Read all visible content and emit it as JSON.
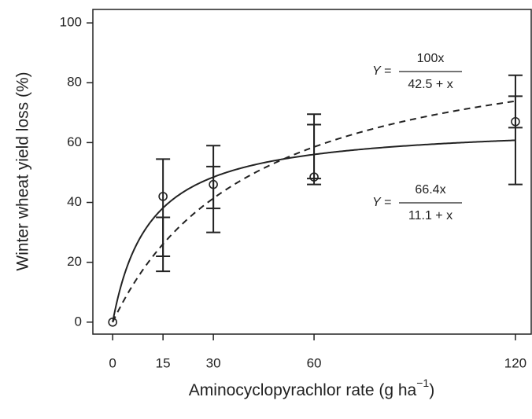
{
  "chart_data": {
    "type": "scatter",
    "x": [
      0,
      15,
      30,
      60,
      120
    ],
    "values": [
      0,
      42,
      46,
      48.5,
      67
    ],
    "error_bars": [
      {
        "low": [
          0,
          22,
          38,
          48,
          65
        ],
        "high": [
          0,
          54.5,
          59,
          69.5,
          82.5
        ]
      },
      {
        "low": [
          0,
          17,
          30,
          46,
          46
        ],
        "high": [
          0,
          35,
          52,
          66,
          75.5
        ]
      }
    ],
    "fits": [
      {
        "style": "solid",
        "a": 66.4,
        "b": 11.1,
        "lhs": "Y =",
        "numerator": "66.4x",
        "denominator": "11.1 + x"
      },
      {
        "style": "dashed",
        "a": 100,
        "b": 42.5,
        "lhs": "Y =",
        "numerator": "100x",
        "denominator": "42.5 + x"
      }
    ],
    "xlabel": {
      "text": "Aminocyclopyrachlor rate (g ha",
      "superscript": "−1",
      "suffix": ")"
    },
    "ylabel": "Winter wheat yield loss (%)",
    "xlim": [
      -5.9,
      124.7
    ],
    "ylim": [
      -4,
      104.5
    ],
    "xticks": [
      0,
      15,
      30,
      60,
      120
    ],
    "yticks": [
      0,
      20,
      40,
      60,
      80,
      100
    ],
    "color": "#222222"
  }
}
